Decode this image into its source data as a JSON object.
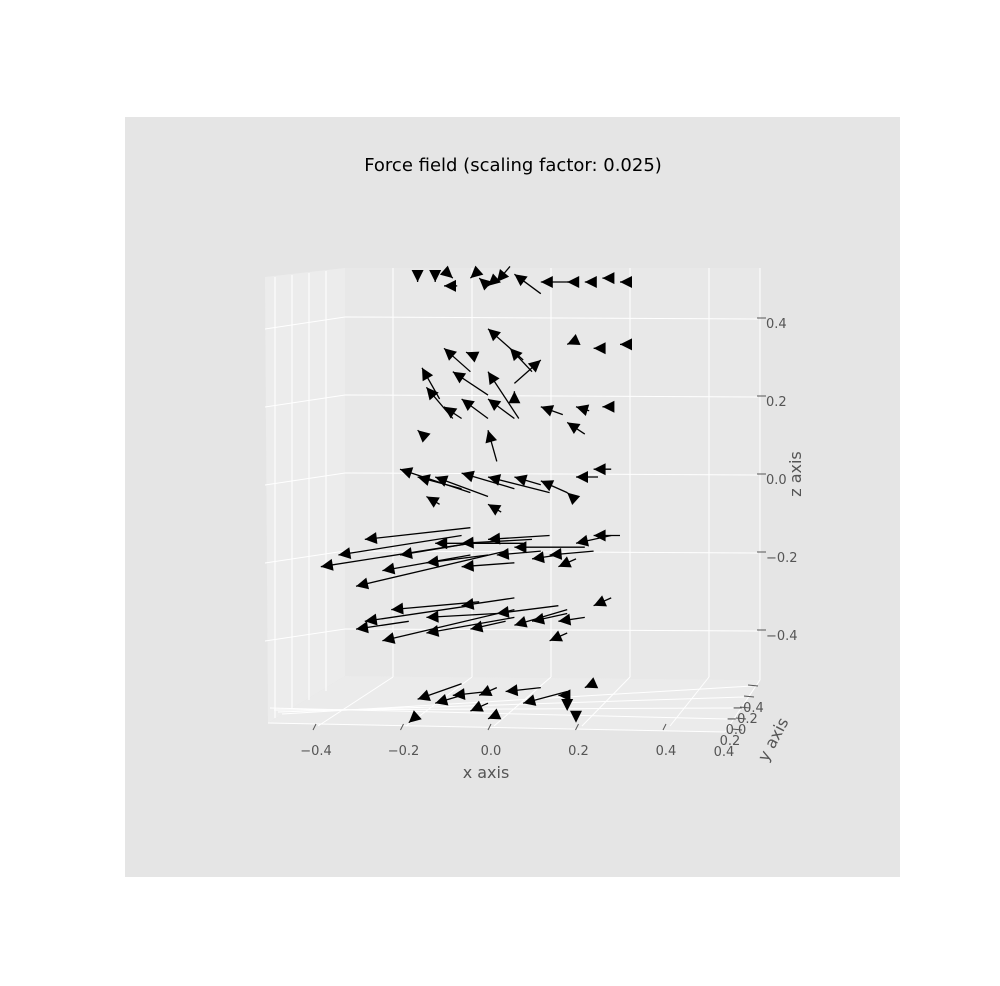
{
  "chart_data": {
    "type": "quiver3d",
    "title": "Force field (scaling factor: 0.025)",
    "xlabel": "x axis",
    "ylabel": "y axis",
    "zlabel": "z axis",
    "xlim": [
      -0.5,
      0.5
    ],
    "ylim": [
      -0.5,
      0.5
    ],
    "zlim": [
      -0.5,
      0.5
    ],
    "x_ticks": [
      "−0.4",
      "−0.2",
      "0.0",
      "0.2",
      "0.4"
    ],
    "y_ticks": [
      "−0.4",
      "−0.2",
      "0.0",
      "0.2",
      "0.4"
    ],
    "z_ticks": [
      "0.4",
      "0.2",
      "0.0",
      "−0.2",
      "−0.4"
    ],
    "grid": true,
    "arrow_color": "#000000",
    "pane_color": "#e5e5e5",
    "background_color": "#e5e5e5",
    "z_levels": [
      0.5,
      0.33,
      0.17,
      0.0,
      -0.17,
      -0.33,
      -0.5
    ],
    "arrows": [
      [
        -0.16,
        0.5,
        -0.0,
        0.02
      ],
      [
        -0.12,
        0.5,
        0.0,
        0.01
      ],
      [
        -0.1,
        0.49,
        0.03,
        0.0
      ],
      [
        -0.08,
        0.51,
        -0.01,
        0.01
      ],
      [
        -0.04,
        0.51,
        0.01,
        0.01
      ],
      [
        -0.02,
        0.51,
        0.01,
        -0.01
      ],
      [
        0.0,
        0.49,
        0.02,
        0.02
      ],
      [
        0.02,
        0.5,
        0.03,
        0.04
      ],
      [
        0.06,
        0.52,
        0.06,
        -0.05
      ],
      [
        0.12,
        0.5,
        0.07,
        0.0
      ],
      [
        0.18,
        0.5,
        0.01,
        0.0
      ],
      [
        0.22,
        0.5,
        0.01,
        0.0
      ],
      [
        0.26,
        0.51,
        0.01,
        0.0
      ],
      [
        0.3,
        0.5,
        0.02,
        0.0
      ],
      [
        -0.1,
        0.33,
        0.06,
        -0.06
      ],
      [
        -0.05,
        0.32,
        0.02,
        -0.01
      ],
      [
        0.0,
        0.38,
        0.08,
        -0.08
      ],
      [
        0.05,
        0.33,
        0.05,
        -0.06
      ],
      [
        0.12,
        0.3,
        -0.06,
        -0.06
      ],
      [
        0.18,
        0.34,
        0.02,
        0.01
      ],
      [
        0.24,
        0.33,
        0.01,
        0.0
      ],
      [
        0.3,
        0.34,
        0.02,
        0.0
      ],
      [
        -0.15,
        0.28,
        0.04,
        -0.08
      ],
      [
        -0.08,
        0.27,
        0.08,
        -0.06
      ],
      [
        0.0,
        0.27,
        0.07,
        -0.12
      ],
      [
        -0.14,
        0.23,
        0.06,
        -0.08
      ],
      [
        -0.1,
        0.18,
        0.04,
        -0.03
      ],
      [
        -0.06,
        0.2,
        0.06,
        -0.05
      ],
      [
        0.0,
        0.2,
        0.06,
        -0.05
      ],
      [
        0.06,
        0.22,
        0.0,
        -0.02
      ],
      [
        0.12,
        0.18,
        0.05,
        -0.02
      ],
      [
        0.2,
        0.18,
        0.03,
        -0.01
      ],
      [
        0.26,
        0.18,
        0.02,
        0.0
      ],
      [
        -0.16,
        0.12,
        0.02,
        -0.02
      ],
      [
        0.0,
        0.12,
        0.02,
        -0.08
      ],
      [
        0.18,
        0.14,
        0.04,
        -0.03
      ],
      [
        -0.2,
        0.02,
        0.16,
        -0.06
      ],
      [
        -0.16,
        0.0,
        0.1,
        -0.03
      ],
      [
        -0.12,
        0.0,
        0.12,
        -0.05
      ],
      [
        -0.06,
        0.01,
        0.12,
        -0.04
      ],
      [
        0.0,
        0.0,
        0.14,
        -0.04
      ],
      [
        0.06,
        0.0,
        0.06,
        -0.02
      ],
      [
        0.12,
        -0.01,
        0.06,
        -0.03
      ],
      [
        0.2,
        0.0,
        0.05,
        0.0
      ],
      [
        0.24,
        0.02,
        0.04,
        0.0
      ],
      [
        -0.14,
        -0.05,
        0.03,
        -0.02
      ],
      [
        0.0,
        -0.07,
        0.03,
        -0.02
      ],
      [
        0.18,
        -0.04,
        0.02,
        -0.02
      ],
      [
        -0.34,
        -0.2,
        0.28,
        0.05
      ],
      [
        -0.28,
        -0.16,
        0.24,
        0.03
      ],
      [
        -0.2,
        -0.2,
        0.16,
        0.03
      ],
      [
        -0.12,
        -0.17,
        0.2,
        0.0
      ],
      [
        -0.06,
        -0.17,
        0.16,
        0.01
      ],
      [
        0.0,
        -0.16,
        0.14,
        0.01
      ],
      [
        0.06,
        -0.18,
        0.16,
        0.0
      ],
      [
        0.14,
        -0.2,
        0.1,
        0.01
      ],
      [
        0.2,
        -0.17,
        0.08,
        0.02
      ],
      [
        0.24,
        -0.15,
        0.06,
        0.0
      ],
      [
        -0.38,
        -0.23,
        0.34,
        0.06
      ],
      [
        -0.3,
        -0.28,
        0.34,
        0.09
      ],
      [
        -0.24,
        -0.24,
        0.2,
        0.04
      ],
      [
        -0.14,
        -0.22,
        0.14,
        0.02
      ],
      [
        -0.06,
        -0.23,
        0.12,
        0.01
      ],
      [
        0.02,
        -0.2,
        0.1,
        0.01
      ],
      [
        0.1,
        -0.21,
        0.06,
        0.01
      ],
      [
        0.16,
        -0.23,
        0.04,
        0.02
      ],
      [
        -0.28,
        -0.37,
        0.24,
        0.04
      ],
      [
        -0.22,
        -0.34,
        0.2,
        0.02
      ],
      [
        -0.14,
        -0.36,
        0.16,
        0.01
      ],
      [
        -0.06,
        -0.33,
        0.12,
        0.02
      ],
      [
        0.02,
        -0.35,
        0.14,
        0.02
      ],
      [
        0.1,
        -0.37,
        0.08,
        0.02
      ],
      [
        0.16,
        -0.37,
        0.06,
        0.01
      ],
      [
        0.24,
        -0.33,
        0.04,
        0.02
      ],
      [
        -0.3,
        -0.39,
        0.12,
        0.02
      ],
      [
        -0.24,
        -0.42,
        0.3,
        0.08
      ],
      [
        -0.14,
        -0.4,
        0.2,
        0.04
      ],
      [
        -0.04,
        -0.39,
        0.08,
        0.02
      ],
      [
        0.06,
        -0.38,
        0.12,
        0.04
      ],
      [
        0.14,
        -0.42,
        0.04,
        0.02
      ],
      [
        -0.16,
        -0.57,
        0.1,
        0.04
      ],
      [
        -0.12,
        -0.58,
        0.06,
        0.02
      ],
      [
        -0.08,
        -0.56,
        0.08,
        0.01
      ],
      [
        -0.02,
        -0.56,
        0.04,
        0.02
      ],
      [
        0.04,
        -0.55,
        0.08,
        0.01
      ],
      [
        0.08,
        -0.58,
        0.1,
        0.03
      ],
      [
        0.16,
        -0.56,
        0.02,
        0.0
      ],
      [
        0.22,
        -0.54,
        0.02,
        0.01
      ],
      [
        -0.04,
        -0.6,
        0.04,
        0.02
      ],
      [
        0.0,
        -0.62,
        0.02,
        0.01
      ],
      [
        0.18,
        -0.6,
        0.0,
        0.0
      ],
      [
        -0.18,
        -0.63,
        0.02,
        0.02
      ],
      [
        0.2,
        -0.63,
        0.0,
        0.0
      ]
    ]
  }
}
